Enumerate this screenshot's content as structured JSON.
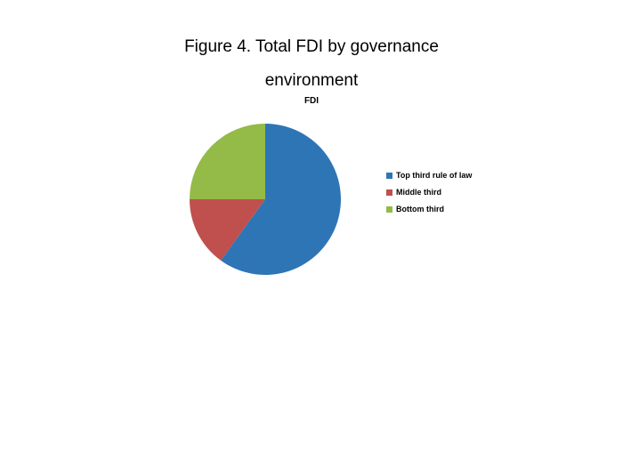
{
  "figure": {
    "title": "Figure 4. Total FDI by governance environment",
    "title_lines": [
      "Figure 4. Total FDI by governance",
      "environment"
    ]
  },
  "chart_data": {
    "type": "pie",
    "title": "FDI",
    "labels": [
      "Top third rule of law",
      "Middle third",
      "Bottom third"
    ],
    "values": [
      60,
      15,
      25
    ],
    "colors": [
      "#2E75B6",
      "#C0504D",
      "#94BA47"
    ],
    "start_angle_deg": 0,
    "direction": "clockwise",
    "legend_position": "right",
    "units": "percent"
  },
  "colors": {
    "background": "#ffffff",
    "text": "#000000"
  }
}
